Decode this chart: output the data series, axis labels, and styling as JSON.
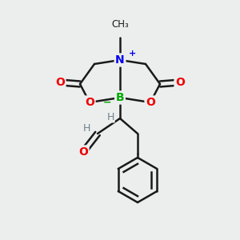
{
  "bg_color": "#eceeed",
  "bond_color": "#1a1a1a",
  "bond_width": 1.8,
  "atom_colors": {
    "N": "#0000ee",
    "B": "#00aa00",
    "O": "#ee0000",
    "C": "#1a1a1a",
    "H": "#708090"
  },
  "figsize": [
    3.0,
    3.0
  ],
  "dpi": 100
}
